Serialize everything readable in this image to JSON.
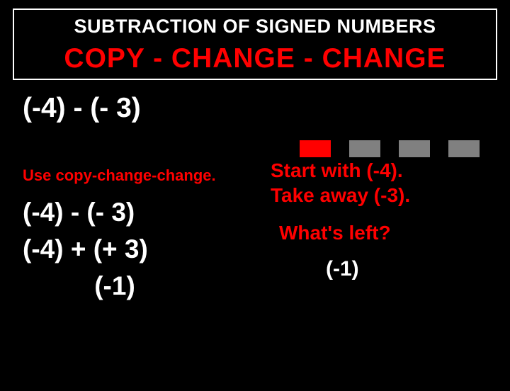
{
  "header": {
    "title": "SUBTRACTION OF SIGNED NUMBERS",
    "rule": "COPY - CHANGE - CHANGE"
  },
  "problem": "(-4) - (- 3)",
  "instruction": "Use copy-change-change.",
  "steps": {
    "step1": "(-4) - (- 3)",
    "step2": "(-4) + (+ 3)",
    "result": "(-1)"
  },
  "explanation": {
    "line1": "Start with (-4).",
    "line2": "Take away (-3).",
    "question": "What's left?",
    "answer": "(-1)"
  },
  "squares": {
    "colors": [
      "#ff0000",
      "#808080",
      "#808080",
      "#808080"
    ]
  },
  "style": {
    "background": "#000000",
    "text_white": "#ffffff",
    "text_red": "#ff0000",
    "text_gray": "#808080"
  }
}
